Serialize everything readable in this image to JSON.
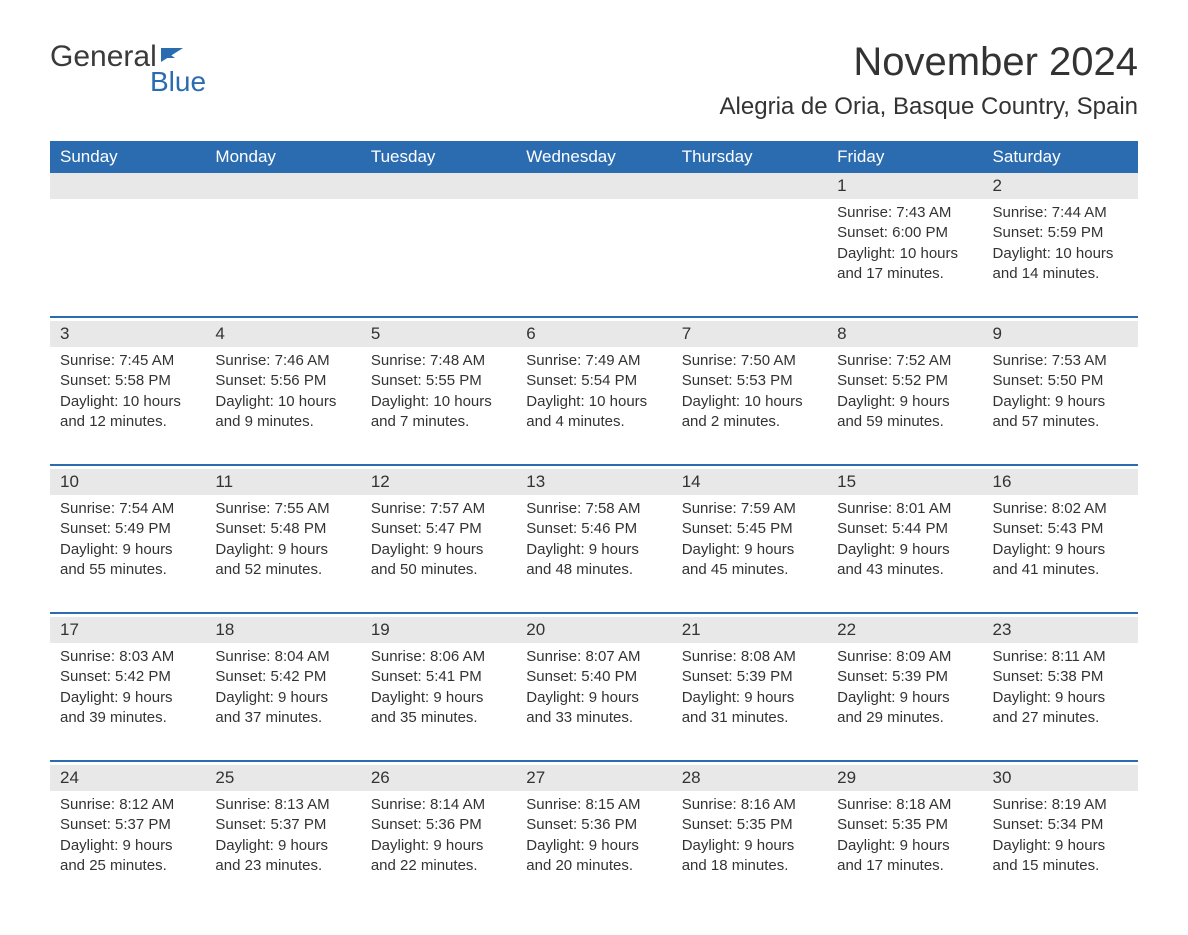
{
  "logo": {
    "text1": "General",
    "text2": "Blue"
  },
  "header": {
    "month_title": "November 2024",
    "location": "Alegria de Oria, Basque Country, Spain"
  },
  "colors": {
    "header_bg": "#2b6cb0",
    "header_text": "#ffffff",
    "day_number_bg": "#e8e8e8",
    "text": "#333333",
    "logo_blue": "#2b6cb0"
  },
  "day_names": [
    "Sunday",
    "Monday",
    "Tuesday",
    "Wednesday",
    "Thursday",
    "Friday",
    "Saturday"
  ],
  "weeks": [
    [
      null,
      null,
      null,
      null,
      null,
      {
        "day": "1",
        "sunrise": "Sunrise: 7:43 AM",
        "sunset": "Sunset: 6:00 PM",
        "daylight1": "Daylight: 10 hours",
        "daylight2": "and 17 minutes."
      },
      {
        "day": "2",
        "sunrise": "Sunrise: 7:44 AM",
        "sunset": "Sunset: 5:59 PM",
        "daylight1": "Daylight: 10 hours",
        "daylight2": "and 14 minutes."
      }
    ],
    [
      {
        "day": "3",
        "sunrise": "Sunrise: 7:45 AM",
        "sunset": "Sunset: 5:58 PM",
        "daylight1": "Daylight: 10 hours",
        "daylight2": "and 12 minutes."
      },
      {
        "day": "4",
        "sunrise": "Sunrise: 7:46 AM",
        "sunset": "Sunset: 5:56 PM",
        "daylight1": "Daylight: 10 hours",
        "daylight2": "and 9 minutes."
      },
      {
        "day": "5",
        "sunrise": "Sunrise: 7:48 AM",
        "sunset": "Sunset: 5:55 PM",
        "daylight1": "Daylight: 10 hours",
        "daylight2": "and 7 minutes."
      },
      {
        "day": "6",
        "sunrise": "Sunrise: 7:49 AM",
        "sunset": "Sunset: 5:54 PM",
        "daylight1": "Daylight: 10 hours",
        "daylight2": "and 4 minutes."
      },
      {
        "day": "7",
        "sunrise": "Sunrise: 7:50 AM",
        "sunset": "Sunset: 5:53 PM",
        "daylight1": "Daylight: 10 hours",
        "daylight2": "and 2 minutes."
      },
      {
        "day": "8",
        "sunrise": "Sunrise: 7:52 AM",
        "sunset": "Sunset: 5:52 PM",
        "daylight1": "Daylight: 9 hours",
        "daylight2": "and 59 minutes."
      },
      {
        "day": "9",
        "sunrise": "Sunrise: 7:53 AM",
        "sunset": "Sunset: 5:50 PM",
        "daylight1": "Daylight: 9 hours",
        "daylight2": "and 57 minutes."
      }
    ],
    [
      {
        "day": "10",
        "sunrise": "Sunrise: 7:54 AM",
        "sunset": "Sunset: 5:49 PM",
        "daylight1": "Daylight: 9 hours",
        "daylight2": "and 55 minutes."
      },
      {
        "day": "11",
        "sunrise": "Sunrise: 7:55 AM",
        "sunset": "Sunset: 5:48 PM",
        "daylight1": "Daylight: 9 hours",
        "daylight2": "and 52 minutes."
      },
      {
        "day": "12",
        "sunrise": "Sunrise: 7:57 AM",
        "sunset": "Sunset: 5:47 PM",
        "daylight1": "Daylight: 9 hours",
        "daylight2": "and 50 minutes."
      },
      {
        "day": "13",
        "sunrise": "Sunrise: 7:58 AM",
        "sunset": "Sunset: 5:46 PM",
        "daylight1": "Daylight: 9 hours",
        "daylight2": "and 48 minutes."
      },
      {
        "day": "14",
        "sunrise": "Sunrise: 7:59 AM",
        "sunset": "Sunset: 5:45 PM",
        "daylight1": "Daylight: 9 hours",
        "daylight2": "and 45 minutes."
      },
      {
        "day": "15",
        "sunrise": "Sunrise: 8:01 AM",
        "sunset": "Sunset: 5:44 PM",
        "daylight1": "Daylight: 9 hours",
        "daylight2": "and 43 minutes."
      },
      {
        "day": "16",
        "sunrise": "Sunrise: 8:02 AM",
        "sunset": "Sunset: 5:43 PM",
        "daylight1": "Daylight: 9 hours",
        "daylight2": "and 41 minutes."
      }
    ],
    [
      {
        "day": "17",
        "sunrise": "Sunrise: 8:03 AM",
        "sunset": "Sunset: 5:42 PM",
        "daylight1": "Daylight: 9 hours",
        "daylight2": "and 39 minutes."
      },
      {
        "day": "18",
        "sunrise": "Sunrise: 8:04 AM",
        "sunset": "Sunset: 5:42 PM",
        "daylight1": "Daylight: 9 hours",
        "daylight2": "and 37 minutes."
      },
      {
        "day": "19",
        "sunrise": "Sunrise: 8:06 AM",
        "sunset": "Sunset: 5:41 PM",
        "daylight1": "Daylight: 9 hours",
        "daylight2": "and 35 minutes."
      },
      {
        "day": "20",
        "sunrise": "Sunrise: 8:07 AM",
        "sunset": "Sunset: 5:40 PM",
        "daylight1": "Daylight: 9 hours",
        "daylight2": "and 33 minutes."
      },
      {
        "day": "21",
        "sunrise": "Sunrise: 8:08 AM",
        "sunset": "Sunset: 5:39 PM",
        "daylight1": "Daylight: 9 hours",
        "daylight2": "and 31 minutes."
      },
      {
        "day": "22",
        "sunrise": "Sunrise: 8:09 AM",
        "sunset": "Sunset: 5:39 PM",
        "daylight1": "Daylight: 9 hours",
        "daylight2": "and 29 minutes."
      },
      {
        "day": "23",
        "sunrise": "Sunrise: 8:11 AM",
        "sunset": "Sunset: 5:38 PM",
        "daylight1": "Daylight: 9 hours",
        "daylight2": "and 27 minutes."
      }
    ],
    [
      {
        "day": "24",
        "sunrise": "Sunrise: 8:12 AM",
        "sunset": "Sunset: 5:37 PM",
        "daylight1": "Daylight: 9 hours",
        "daylight2": "and 25 minutes."
      },
      {
        "day": "25",
        "sunrise": "Sunrise: 8:13 AM",
        "sunset": "Sunset: 5:37 PM",
        "daylight1": "Daylight: 9 hours",
        "daylight2": "and 23 minutes."
      },
      {
        "day": "26",
        "sunrise": "Sunrise: 8:14 AM",
        "sunset": "Sunset: 5:36 PM",
        "daylight1": "Daylight: 9 hours",
        "daylight2": "and 22 minutes."
      },
      {
        "day": "27",
        "sunrise": "Sunrise: 8:15 AM",
        "sunset": "Sunset: 5:36 PM",
        "daylight1": "Daylight: 9 hours",
        "daylight2": "and 20 minutes."
      },
      {
        "day": "28",
        "sunrise": "Sunrise: 8:16 AM",
        "sunset": "Sunset: 5:35 PM",
        "daylight1": "Daylight: 9 hours",
        "daylight2": "and 18 minutes."
      },
      {
        "day": "29",
        "sunrise": "Sunrise: 8:18 AM",
        "sunset": "Sunset: 5:35 PM",
        "daylight1": "Daylight: 9 hours",
        "daylight2": "and 17 minutes."
      },
      {
        "day": "30",
        "sunrise": "Sunrise: 8:19 AM",
        "sunset": "Sunset: 5:34 PM",
        "daylight1": "Daylight: 9 hours",
        "daylight2": "and 15 minutes."
      }
    ]
  ]
}
